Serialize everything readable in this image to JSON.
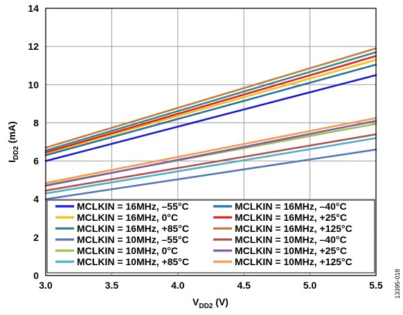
{
  "chart_data": {
    "type": "line",
    "grid": true,
    "legend": "bottom, two columns",
    "xlabel": {
      "symbol": "V",
      "subscript": "DD2",
      "unit": " (V)"
    },
    "ylabel": {
      "symbol": "I",
      "subscript": "DD2",
      "unit": " (mA)"
    },
    "xlim": [
      3.0,
      5.5
    ],
    "ylim": [
      0,
      14
    ],
    "xtick_labels": [
      "3.0",
      "3.5",
      "4.0",
      "4.5",
      "5.0",
      "5.5"
    ],
    "ytick_labels": [
      "0",
      "2",
      "4",
      "6",
      "8",
      "10",
      "12",
      "14"
    ],
    "x": [
      3.0,
      3.5,
      4.0,
      4.5,
      5.0,
      5.5
    ],
    "series": [
      {
        "name": "MCLKIN = 16MHz, –55°C",
        "color": "#1a1ad6",
        "values": [
          6.0,
          6.9,
          7.8,
          8.7,
          9.6,
          10.5
        ]
      },
      {
        "name": "MCLKIN = 16MHz, –40°C",
        "color": "#2470a8",
        "values": [
          6.3,
          7.25,
          8.2,
          9.15,
          10.1,
          11.05
        ]
      },
      {
        "name": "MCLKIN = 16MHz, 0°C",
        "color": "#f7be0f",
        "values": [
          6.4,
          7.38,
          8.36,
          9.34,
          10.32,
          11.3
        ]
      },
      {
        "name": "MCLKIN = 16MHz, +25°C",
        "color": "#e2231a",
        "values": [
          6.45,
          7.46,
          8.47,
          9.48,
          10.49,
          11.5
        ]
      },
      {
        "name": "MCLKIN = 16MHz, +85°C",
        "color": "#35858f",
        "values": [
          6.55,
          7.58,
          8.61,
          9.64,
          10.67,
          11.7
        ]
      },
      {
        "name": "MCLKIN = 16MHz, +125°C",
        "color": "#c27c3e",
        "values": [
          6.7,
          7.74,
          8.78,
          9.82,
          10.86,
          11.9
        ]
      },
      {
        "name": "MCLKIN = 10MHz, –55°C",
        "color": "#5577b5",
        "values": [
          4.0,
          4.52,
          5.04,
          5.56,
          6.08,
          6.6
        ]
      },
      {
        "name": "MCLKIN = 10MHz, –40°C",
        "color": "#b24f4c",
        "values": [
          4.45,
          5.04,
          5.63,
          6.22,
          6.81,
          7.4
        ]
      },
      {
        "name": "MCLKIN = 10MHz, 0°C",
        "color": "#9dbf4b",
        "values": [
          4.75,
          5.39,
          6.03,
          6.67,
          7.31,
          7.95
        ]
      },
      {
        "name": "MCLKIN = 10MHz, +25°C",
        "color": "#7e5ca6",
        "values": [
          4.7,
          5.38,
          6.06,
          6.74,
          7.42,
          8.1
        ]
      },
      {
        "name": "MCLKIN = 10MHz, +85°C",
        "color": "#4bb0c6",
        "values": [
          4.3,
          4.88,
          5.46,
          6.04,
          6.62,
          7.2
        ]
      },
      {
        "name": "MCLKIN = 10MHz, +125°C",
        "color": "#f69a48",
        "values": [
          4.85,
          5.53,
          6.21,
          6.89,
          7.57,
          8.25
        ]
      }
    ]
  },
  "figure_id": "13395-018"
}
